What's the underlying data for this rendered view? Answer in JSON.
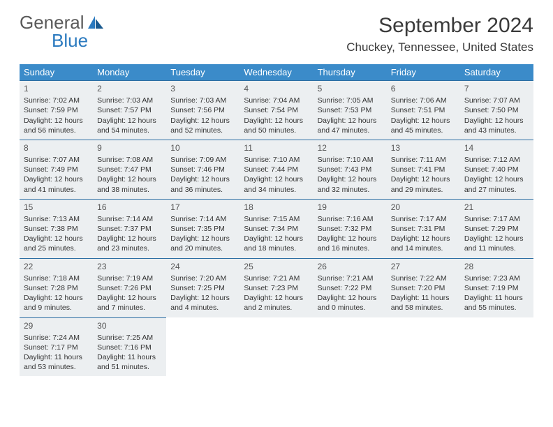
{
  "logo": {
    "line1": "General",
    "line2": "Blue"
  },
  "title": "September 2024",
  "location": "Chuckey, Tennessee, United States",
  "header_bg": "#3b8bc9",
  "day_bg": "#eceff1",
  "divider_color": "#2c6ea3",
  "weekdays": [
    "Sunday",
    "Monday",
    "Tuesday",
    "Wednesday",
    "Thursday",
    "Friday",
    "Saturday"
  ],
  "weeks": [
    [
      {
        "n": "1",
        "sr": "Sunrise: 7:02 AM",
        "ss": "Sunset: 7:59 PM",
        "dl": "Daylight: 12 hours and 56 minutes."
      },
      {
        "n": "2",
        "sr": "Sunrise: 7:03 AM",
        "ss": "Sunset: 7:57 PM",
        "dl": "Daylight: 12 hours and 54 minutes."
      },
      {
        "n": "3",
        "sr": "Sunrise: 7:03 AM",
        "ss": "Sunset: 7:56 PM",
        "dl": "Daylight: 12 hours and 52 minutes."
      },
      {
        "n": "4",
        "sr": "Sunrise: 7:04 AM",
        "ss": "Sunset: 7:54 PM",
        "dl": "Daylight: 12 hours and 50 minutes."
      },
      {
        "n": "5",
        "sr": "Sunrise: 7:05 AM",
        "ss": "Sunset: 7:53 PM",
        "dl": "Daylight: 12 hours and 47 minutes."
      },
      {
        "n": "6",
        "sr": "Sunrise: 7:06 AM",
        "ss": "Sunset: 7:51 PM",
        "dl": "Daylight: 12 hours and 45 minutes."
      },
      {
        "n": "7",
        "sr": "Sunrise: 7:07 AM",
        "ss": "Sunset: 7:50 PM",
        "dl": "Daylight: 12 hours and 43 minutes."
      }
    ],
    [
      {
        "n": "8",
        "sr": "Sunrise: 7:07 AM",
        "ss": "Sunset: 7:49 PM",
        "dl": "Daylight: 12 hours and 41 minutes."
      },
      {
        "n": "9",
        "sr": "Sunrise: 7:08 AM",
        "ss": "Sunset: 7:47 PM",
        "dl": "Daylight: 12 hours and 38 minutes."
      },
      {
        "n": "10",
        "sr": "Sunrise: 7:09 AM",
        "ss": "Sunset: 7:46 PM",
        "dl": "Daylight: 12 hours and 36 minutes."
      },
      {
        "n": "11",
        "sr": "Sunrise: 7:10 AM",
        "ss": "Sunset: 7:44 PM",
        "dl": "Daylight: 12 hours and 34 minutes."
      },
      {
        "n": "12",
        "sr": "Sunrise: 7:10 AM",
        "ss": "Sunset: 7:43 PM",
        "dl": "Daylight: 12 hours and 32 minutes."
      },
      {
        "n": "13",
        "sr": "Sunrise: 7:11 AM",
        "ss": "Sunset: 7:41 PM",
        "dl": "Daylight: 12 hours and 29 minutes."
      },
      {
        "n": "14",
        "sr": "Sunrise: 7:12 AM",
        "ss": "Sunset: 7:40 PM",
        "dl": "Daylight: 12 hours and 27 minutes."
      }
    ],
    [
      {
        "n": "15",
        "sr": "Sunrise: 7:13 AM",
        "ss": "Sunset: 7:38 PM",
        "dl": "Daylight: 12 hours and 25 minutes."
      },
      {
        "n": "16",
        "sr": "Sunrise: 7:14 AM",
        "ss": "Sunset: 7:37 PM",
        "dl": "Daylight: 12 hours and 23 minutes."
      },
      {
        "n": "17",
        "sr": "Sunrise: 7:14 AM",
        "ss": "Sunset: 7:35 PM",
        "dl": "Daylight: 12 hours and 20 minutes."
      },
      {
        "n": "18",
        "sr": "Sunrise: 7:15 AM",
        "ss": "Sunset: 7:34 PM",
        "dl": "Daylight: 12 hours and 18 minutes."
      },
      {
        "n": "19",
        "sr": "Sunrise: 7:16 AM",
        "ss": "Sunset: 7:32 PM",
        "dl": "Daylight: 12 hours and 16 minutes."
      },
      {
        "n": "20",
        "sr": "Sunrise: 7:17 AM",
        "ss": "Sunset: 7:31 PM",
        "dl": "Daylight: 12 hours and 14 minutes."
      },
      {
        "n": "21",
        "sr": "Sunrise: 7:17 AM",
        "ss": "Sunset: 7:29 PM",
        "dl": "Daylight: 12 hours and 11 minutes."
      }
    ],
    [
      {
        "n": "22",
        "sr": "Sunrise: 7:18 AM",
        "ss": "Sunset: 7:28 PM",
        "dl": "Daylight: 12 hours and 9 minutes."
      },
      {
        "n": "23",
        "sr": "Sunrise: 7:19 AM",
        "ss": "Sunset: 7:26 PM",
        "dl": "Daylight: 12 hours and 7 minutes."
      },
      {
        "n": "24",
        "sr": "Sunrise: 7:20 AM",
        "ss": "Sunset: 7:25 PM",
        "dl": "Daylight: 12 hours and 4 minutes."
      },
      {
        "n": "25",
        "sr": "Sunrise: 7:21 AM",
        "ss": "Sunset: 7:23 PM",
        "dl": "Daylight: 12 hours and 2 minutes."
      },
      {
        "n": "26",
        "sr": "Sunrise: 7:21 AM",
        "ss": "Sunset: 7:22 PM",
        "dl": "Daylight: 12 hours and 0 minutes."
      },
      {
        "n": "27",
        "sr": "Sunrise: 7:22 AM",
        "ss": "Sunset: 7:20 PM",
        "dl": "Daylight: 11 hours and 58 minutes."
      },
      {
        "n": "28",
        "sr": "Sunrise: 7:23 AM",
        "ss": "Sunset: 7:19 PM",
        "dl": "Daylight: 11 hours and 55 minutes."
      }
    ],
    [
      {
        "n": "29",
        "sr": "Sunrise: 7:24 AM",
        "ss": "Sunset: 7:17 PM",
        "dl": "Daylight: 11 hours and 53 minutes."
      },
      {
        "n": "30",
        "sr": "Sunrise: 7:25 AM",
        "ss": "Sunset: 7:16 PM",
        "dl": "Daylight: 11 hours and 51 minutes."
      },
      null,
      null,
      null,
      null,
      null
    ]
  ]
}
